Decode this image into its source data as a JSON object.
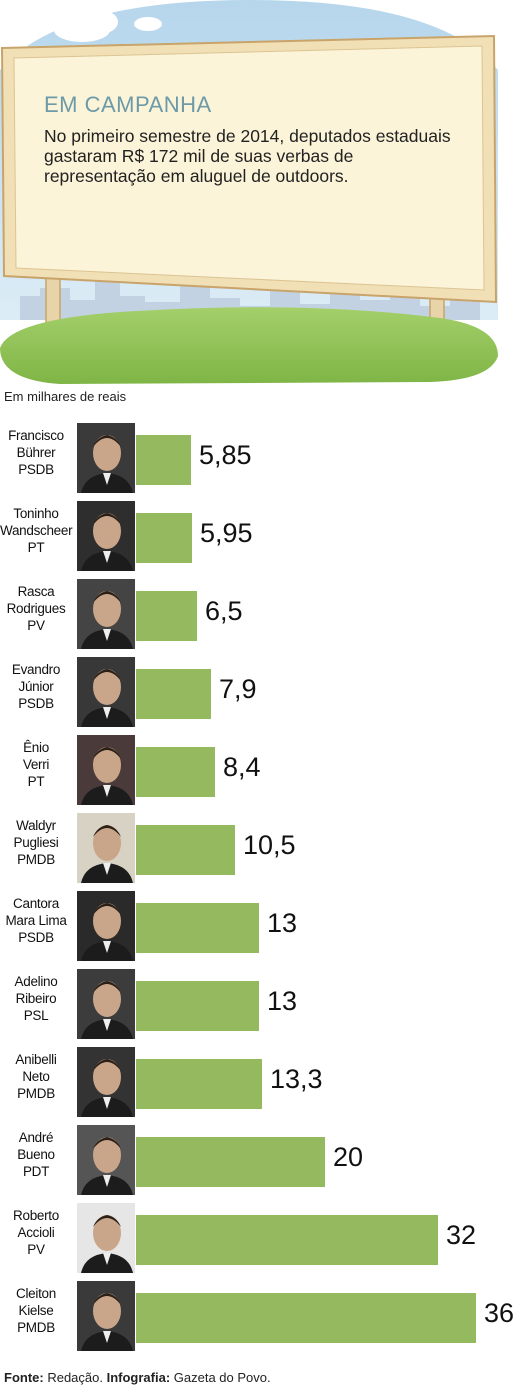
{
  "header": {
    "title": "EM CAMPANHA",
    "subtitle": "No primeiro semestre de 2014, deputados estaduais  gastaram R$ 172 mil de suas verbas de representação em aluguel de outdoors."
  },
  "unit_label": "Em milhares de reais",
  "chart_data": {
    "type": "bar",
    "orientation": "horizontal",
    "categories": [
      "Francisco Bührer PSDB",
      "Toninho Wandscheer PT",
      "Rasca Rodrigues PV",
      "Evandro Júnior PSDB",
      "Ênio Verri PT",
      "Waldyr Pugliesi PMDB",
      "Cantora Mara Lima PSDB",
      "Adelino Ribeiro PSL",
      "Anibelli Neto PMDB",
      "André Bueno PDT",
      "Roberto Accioli PV",
      "Cleiton Kielse PMDB"
    ],
    "values": [
      5.85,
      5.95,
      6.5,
      7.9,
      8.4,
      10.5,
      13,
      13,
      13.3,
      20,
      32,
      36
    ],
    "xlim": [
      0,
      36
    ],
    "bar_color": "#94b95f",
    "grid": false,
    "legend": "none",
    "items": [
      {
        "name_lines": [
          "Francisco",
          "Bührer"
        ],
        "party": "PSDB",
        "value_label": "5,85",
        "value": 5.85
      },
      {
        "name_lines": [
          "Toninho",
          "Wandscheer"
        ],
        "party": "PT",
        "value_label": "5,95",
        "value": 5.95
      },
      {
        "name_lines": [
          "Rasca",
          "Rodrigues"
        ],
        "party": "PV",
        "value_label": "6,5",
        "value": 6.5
      },
      {
        "name_lines": [
          "Evandro",
          "Júnior"
        ],
        "party": "PSDB",
        "value_label": "7,9",
        "value": 7.9
      },
      {
        "name_lines": [
          "Ênio",
          "Verri"
        ],
        "party": "PT",
        "value_label": "8,4",
        "value": 8.4
      },
      {
        "name_lines": [
          "Waldyr",
          "Pugliesi"
        ],
        "party": "PMDB",
        "value_label": "10,5",
        "value": 10.5
      },
      {
        "name_lines": [
          "Cantora",
          "Mara Lima"
        ],
        "party": "PSDB",
        "value_label": "13",
        "value": 13
      },
      {
        "name_lines": [
          "Adelino",
          "Ribeiro"
        ],
        "party": "PSL",
        "value_label": "13",
        "value": 13
      },
      {
        "name_lines": [
          "Anibelli",
          "Neto"
        ],
        "party": "PMDB",
        "value_label": "13,3",
        "value": 13.3
      },
      {
        "name_lines": [
          "André",
          "Bueno"
        ],
        "party": "PDT",
        "value_label": "20",
        "value": 20
      },
      {
        "name_lines": [
          "Roberto",
          "Accioli"
        ],
        "party": "PV",
        "value_label": "32",
        "value": 32
      },
      {
        "name_lines": [
          "Cleiton",
          "Kielse"
        ],
        "party": "PMDB",
        "value_label": "36",
        "value": 36
      }
    ]
  },
  "footer": {
    "source_label": "Fonte:",
    "source_value": " Redação. ",
    "credit_label": "Infografia:",
    "credit_value": " Gazeta do Povo."
  }
}
